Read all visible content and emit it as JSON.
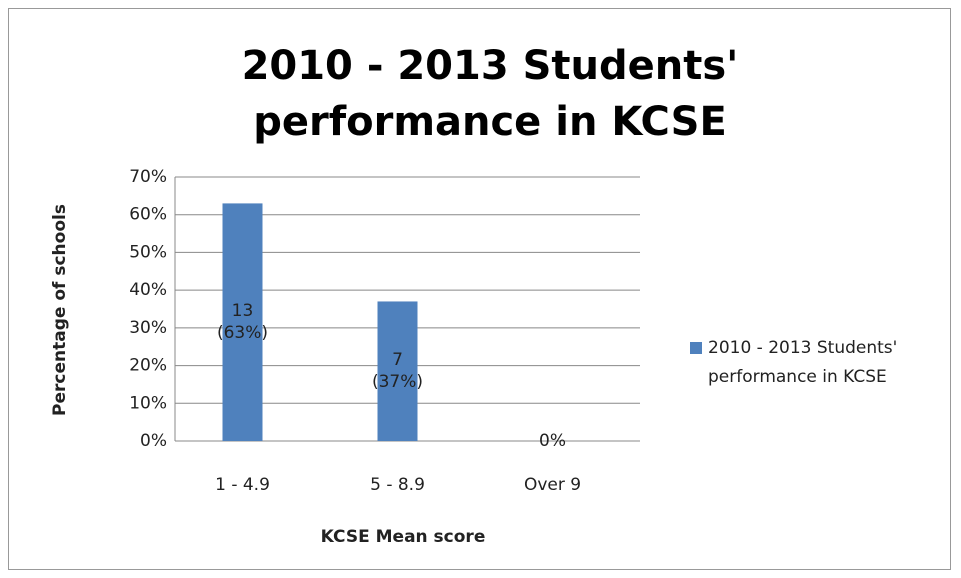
{
  "chart_data": {
    "type": "bar",
    "title": "2010 - 2013 Students' performance in KCSE",
    "x_label": "KCSE Mean score",
    "y_label": "Percentage of schools",
    "categories": [
      "1 - 4.9",
      "5 - 8.9",
      "Over 9"
    ],
    "series": [
      {
        "name": "2010 - 2013 Students' performance in KCSE",
        "color": "#4f81bd",
        "values": [
          63,
          37,
          0
        ],
        "value_labels": [
          "13\n(63%)",
          "7\n(37%)",
          "0%"
        ]
      }
    ],
    "ylim": [
      0,
      70
    ],
    "yticks": [
      {
        "value": 0,
        "label": "0%"
      },
      {
        "value": 10,
        "label": "10%"
      },
      {
        "value": 20,
        "label": "20%"
      },
      {
        "value": 30,
        "label": "30%"
      },
      {
        "value": 40,
        "label": "40%"
      },
      {
        "value": 50,
        "label": "50%"
      },
      {
        "value": 60,
        "label": "60%"
      },
      {
        "value": 70,
        "label": "70%"
      }
    ],
    "grid": true,
    "legend": "right"
  }
}
